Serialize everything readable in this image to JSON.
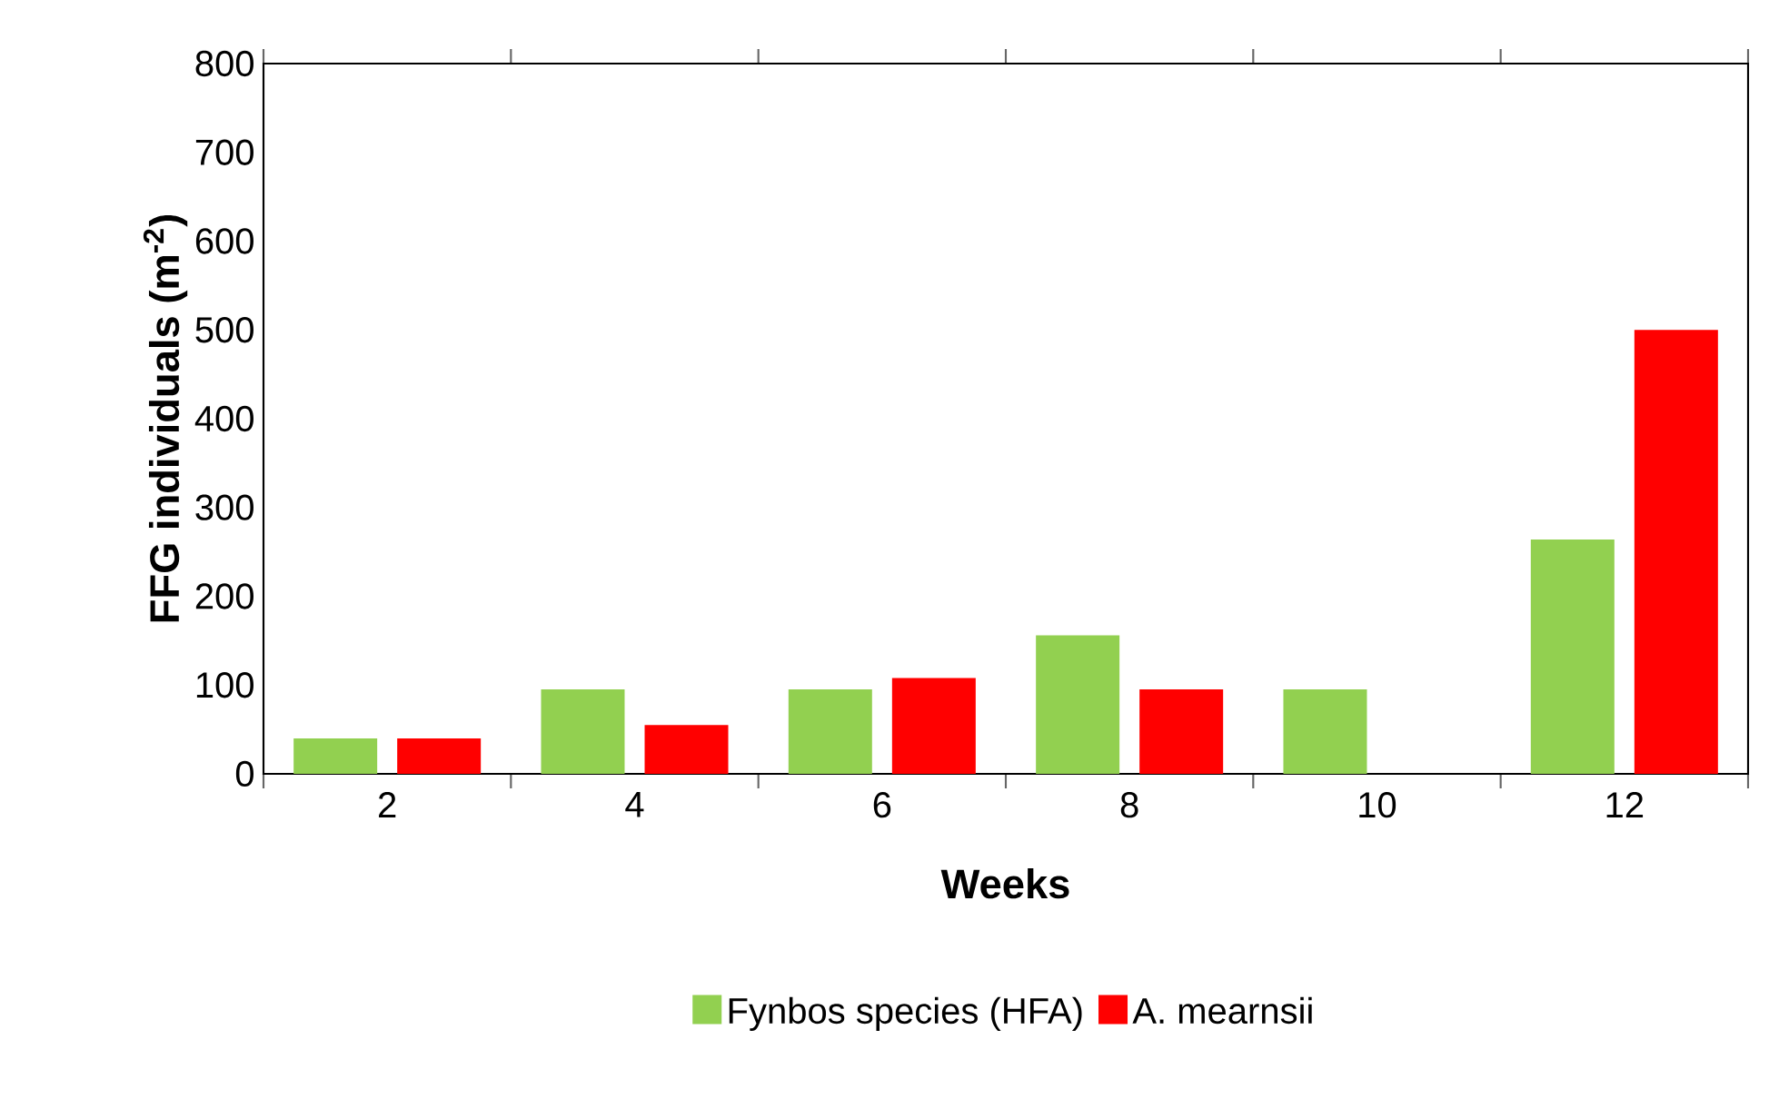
{
  "chart_data": {
    "type": "bar",
    "categories": [
      "2",
      "4",
      "6",
      "8",
      "10",
      "12"
    ],
    "xlabel": "Weeks",
    "ylabel": "FFG individuals (m$^{-2}$)",
    "ylim": [
      0,
      800
    ],
    "yticks": [
      0,
      100,
      200,
      300,
      400,
      500,
      600,
      700,
      800
    ],
    "series": [
      {
        "name": "Fynbos species (HFA)",
        "color": "#92d050",
        "values": [
          40,
          95,
          95,
          156,
          95,
          264
        ]
      },
      {
        "name": "A. mearnsii",
        "color": "#ff0000",
        "values": [
          40,
          55,
          108,
          95,
          0,
          500
        ]
      }
    ],
    "legend": "bottom",
    "grid": false
  }
}
